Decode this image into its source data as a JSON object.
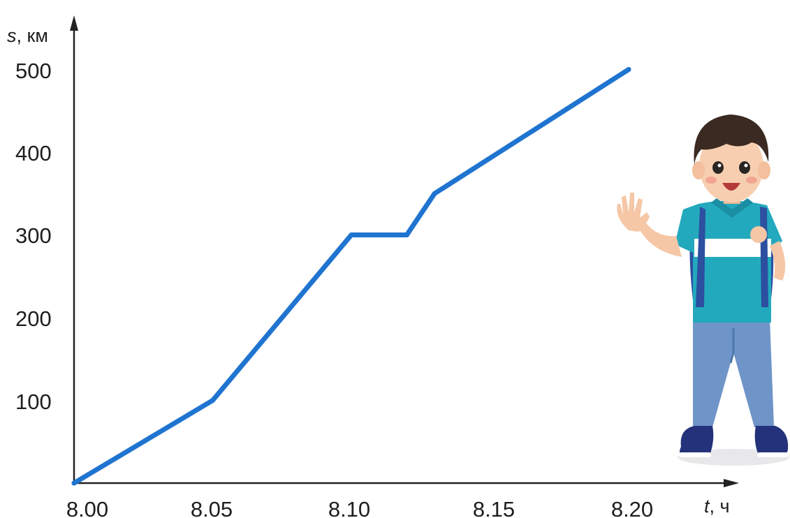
{
  "chart_data": {
    "type": "line",
    "xlabel_var": "t",
    "xlabel_unit": ", ч",
    "ylabel_var": "s",
    "ylabel_unit": ", км",
    "x_ticks": [
      "8.00",
      "8.05",
      "8.10",
      "8.15",
      "8.20"
    ],
    "y_ticks": [
      "100",
      "200",
      "300",
      "400",
      "500"
    ],
    "xlim": [
      0,
      22
    ],
    "ylim": [
      0,
      560
    ],
    "series": [
      {
        "color": "#1f74d0",
        "x": [
          0,
          5,
          10,
          12,
          13,
          20
        ],
        "y": [
          0,
          100,
          300,
          300,
          350,
          500
        ]
      }
    ],
    "grid": false,
    "legend": "none"
  },
  "illustration": {
    "icon": "waving-boy-with-backpack-icon"
  }
}
